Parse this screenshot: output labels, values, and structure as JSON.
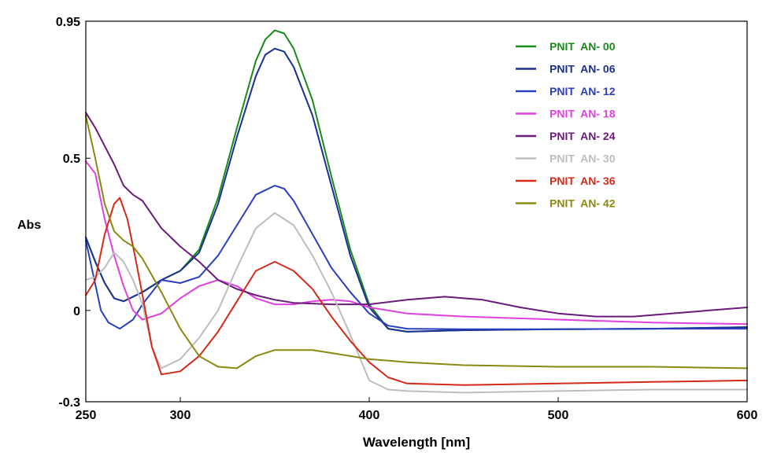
{
  "chart_data": {
    "type": "line",
    "xlabel": "Wavelength [nm]",
    "ylabel": "Abs",
    "xlim": [
      250,
      600
    ],
    "ylim": [
      -0.3,
      0.95
    ],
    "xticks": [
      250,
      300,
      400,
      500,
      600
    ],
    "xtick_labels": [
      "250",
      "300",
      "400",
      "500",
      "600"
    ],
    "yticks": [
      -0.3,
      0,
      0.5,
      0.95
    ],
    "ytick_labels": [
      "-0.3",
      "0",
      "0.5",
      "0.95"
    ],
    "grid": false,
    "legend_position": "top-right",
    "series": [
      {
        "name": "PNIT  AN- 00",
        "color": "#1a8a1a",
        "points": [
          [
            250,
            0.24
          ],
          [
            255,
            0.16
          ],
          [
            260,
            0.09
          ],
          [
            265,
            0.04
          ],
          [
            270,
            0.03
          ],
          [
            280,
            0.06
          ],
          [
            290,
            0.1
          ],
          [
            300,
            0.13
          ],
          [
            310,
            0.2
          ],
          [
            320,
            0.37
          ],
          [
            330,
            0.6
          ],
          [
            340,
            0.82
          ],
          [
            345,
            0.89
          ],
          [
            350,
            0.92
          ],
          [
            355,
            0.91
          ],
          [
            360,
            0.86
          ],
          [
            370,
            0.69
          ],
          [
            380,
            0.44
          ],
          [
            390,
            0.2
          ],
          [
            400,
            0.02
          ],
          [
            410,
            -0.06
          ],
          [
            420,
            -0.07
          ],
          [
            450,
            -0.065
          ],
          [
            500,
            -0.062
          ],
          [
            550,
            -0.06
          ],
          [
            600,
            -0.055
          ]
        ]
      },
      {
        "name": "PNIT  AN- 06",
        "color": "#1a2f8f",
        "points": [
          [
            250,
            0.24
          ],
          [
            255,
            0.16
          ],
          [
            260,
            0.09
          ],
          [
            265,
            0.04
          ],
          [
            270,
            0.03
          ],
          [
            280,
            0.06
          ],
          [
            290,
            0.1
          ],
          [
            300,
            0.13
          ],
          [
            310,
            0.19
          ],
          [
            320,
            0.35
          ],
          [
            330,
            0.57
          ],
          [
            340,
            0.77
          ],
          [
            345,
            0.84
          ],
          [
            350,
            0.86
          ],
          [
            355,
            0.85
          ],
          [
            360,
            0.8
          ],
          [
            370,
            0.64
          ],
          [
            380,
            0.41
          ],
          [
            390,
            0.18
          ],
          [
            400,
            0.01
          ],
          [
            410,
            -0.06
          ],
          [
            420,
            -0.07
          ],
          [
            450,
            -0.065
          ],
          [
            500,
            -0.062
          ],
          [
            550,
            -0.06
          ],
          [
            600,
            -0.055
          ]
        ]
      },
      {
        "name": "PNIT  AN- 12",
        "color": "#2a3fbf",
        "points": [
          [
            250,
            0.23
          ],
          [
            258,
            0.0
          ],
          [
            262,
            -0.04
          ],
          [
            268,
            -0.06
          ],
          [
            275,
            -0.03
          ],
          [
            280,
            0.02
          ],
          [
            290,
            0.1
          ],
          [
            300,
            0.09
          ],
          [
            310,
            0.11
          ],
          [
            320,
            0.18
          ],
          [
            330,
            0.28
          ],
          [
            340,
            0.38
          ],
          [
            350,
            0.41
          ],
          [
            355,
            0.4
          ],
          [
            360,
            0.36
          ],
          [
            370,
            0.25
          ],
          [
            380,
            0.14
          ],
          [
            390,
            0.06
          ],
          [
            400,
            -0.01
          ],
          [
            410,
            -0.05
          ],
          [
            420,
            -0.06
          ],
          [
            450,
            -0.062
          ],
          [
            500,
            -0.062
          ],
          [
            550,
            -0.06
          ],
          [
            600,
            -0.06
          ]
        ]
      },
      {
        "name": "PNIT  AN- 18",
        "color": "#e040e0",
        "points": [
          [
            250,
            0.49
          ],
          [
            255,
            0.45
          ],
          [
            260,
            0.3
          ],
          [
            265,
            0.18
          ],
          [
            270,
            0.08
          ],
          [
            275,
            0.0
          ],
          [
            280,
            -0.03
          ],
          [
            290,
            -0.01
          ],
          [
            300,
            0.04
          ],
          [
            310,
            0.08
          ],
          [
            320,
            0.1
          ],
          [
            330,
            0.08
          ],
          [
            340,
            0.04
          ],
          [
            350,
            0.02
          ],
          [
            360,
            0.02
          ],
          [
            370,
            0.03
          ],
          [
            380,
            0.035
          ],
          [
            390,
            0.03
          ],
          [
            400,
            0.01
          ],
          [
            420,
            -0.01
          ],
          [
            450,
            -0.02
          ],
          [
            500,
            -0.03
          ],
          [
            550,
            -0.04
          ],
          [
            600,
            -0.045
          ]
        ]
      },
      {
        "name": "PNIT  AN- 24",
        "color": "#6a1a7a",
        "points": [
          [
            250,
            0.65
          ],
          [
            255,
            0.6
          ],
          [
            260,
            0.54
          ],
          [
            265,
            0.48
          ],
          [
            270,
            0.41
          ],
          [
            275,
            0.38
          ],
          [
            280,
            0.36
          ],
          [
            290,
            0.27
          ],
          [
            300,
            0.21
          ],
          [
            310,
            0.16
          ],
          [
            320,
            0.1
          ],
          [
            330,
            0.07
          ],
          [
            340,
            0.05
          ],
          [
            350,
            0.035
          ],
          [
            360,
            0.025
          ],
          [
            380,
            0.02
          ],
          [
            400,
            0.02
          ],
          [
            420,
            0.035
          ],
          [
            440,
            0.045
          ],
          [
            460,
            0.035
          ],
          [
            480,
            0.01
          ],
          [
            500,
            -0.01
          ],
          [
            520,
            -0.02
          ],
          [
            540,
            -0.02
          ],
          [
            560,
            -0.01
          ],
          [
            580,
            0.0
          ],
          [
            600,
            0.01
          ]
        ]
      },
      {
        "name": "PNIT  AN- 30",
        "color": "#bdbdbd",
        "points": [
          [
            250,
            0.1
          ],
          [
            255,
            0.11
          ],
          [
            260,
            0.14
          ],
          [
            265,
            0.19
          ],
          [
            270,
            0.16
          ],
          [
            275,
            0.1
          ],
          [
            280,
            0.02
          ],
          [
            285,
            -0.12
          ],
          [
            290,
            -0.19
          ],
          [
            300,
            -0.16
          ],
          [
            310,
            -0.09
          ],
          [
            320,
            0.0
          ],
          [
            330,
            0.14
          ],
          [
            340,
            0.27
          ],
          [
            350,
            0.32
          ],
          [
            360,
            0.28
          ],
          [
            370,
            0.18
          ],
          [
            380,
            0.06
          ],
          [
            390,
            -0.08
          ],
          [
            400,
            -0.23
          ],
          [
            410,
            -0.26
          ],
          [
            420,
            -0.265
          ],
          [
            450,
            -0.27
          ],
          [
            500,
            -0.265
          ],
          [
            550,
            -0.26
          ],
          [
            600,
            -0.26
          ]
        ]
      },
      {
        "name": "PNIT  AN- 36",
        "color": "#d42a1a",
        "points": [
          [
            250,
            0.05
          ],
          [
            255,
            0.1
          ],
          [
            260,
            0.25
          ],
          [
            265,
            0.35
          ],
          [
            268,
            0.37
          ],
          [
            272,
            0.3
          ],
          [
            276,
            0.18
          ],
          [
            280,
            0.05
          ],
          [
            285,
            -0.12
          ],
          [
            290,
            -0.21
          ],
          [
            300,
            -0.2
          ],
          [
            310,
            -0.15
          ],
          [
            320,
            -0.07
          ],
          [
            330,
            0.03
          ],
          [
            340,
            0.13
          ],
          [
            350,
            0.16
          ],
          [
            360,
            0.13
          ],
          [
            370,
            0.07
          ],
          [
            380,
            -0.02
          ],
          [
            390,
            -0.1
          ],
          [
            400,
            -0.17
          ],
          [
            410,
            -0.22
          ],
          [
            420,
            -0.24
          ],
          [
            450,
            -0.245
          ],
          [
            500,
            -0.24
          ],
          [
            550,
            -0.235
          ],
          [
            600,
            -0.23
          ]
        ]
      },
      {
        "name": "PNIT  AN- 42",
        "color": "#8a8a12",
        "points": [
          [
            250,
            0.64
          ],
          [
            255,
            0.5
          ],
          [
            260,
            0.35
          ],
          [
            265,
            0.26
          ],
          [
            270,
            0.23
          ],
          [
            275,
            0.21
          ],
          [
            280,
            0.17
          ],
          [
            290,
            0.06
          ],
          [
            300,
            -0.06
          ],
          [
            310,
            -0.15
          ],
          [
            320,
            -0.185
          ],
          [
            330,
            -0.19
          ],
          [
            340,
            -0.15
          ],
          [
            350,
            -0.13
          ],
          [
            360,
            -0.13
          ],
          [
            370,
            -0.13
          ],
          [
            380,
            -0.14
          ],
          [
            390,
            -0.15
          ],
          [
            400,
            -0.16
          ],
          [
            420,
            -0.17
          ],
          [
            450,
            -0.18
          ],
          [
            500,
            -0.185
          ],
          [
            550,
            -0.185
          ],
          [
            600,
            -0.19
          ]
        ]
      }
    ]
  }
}
